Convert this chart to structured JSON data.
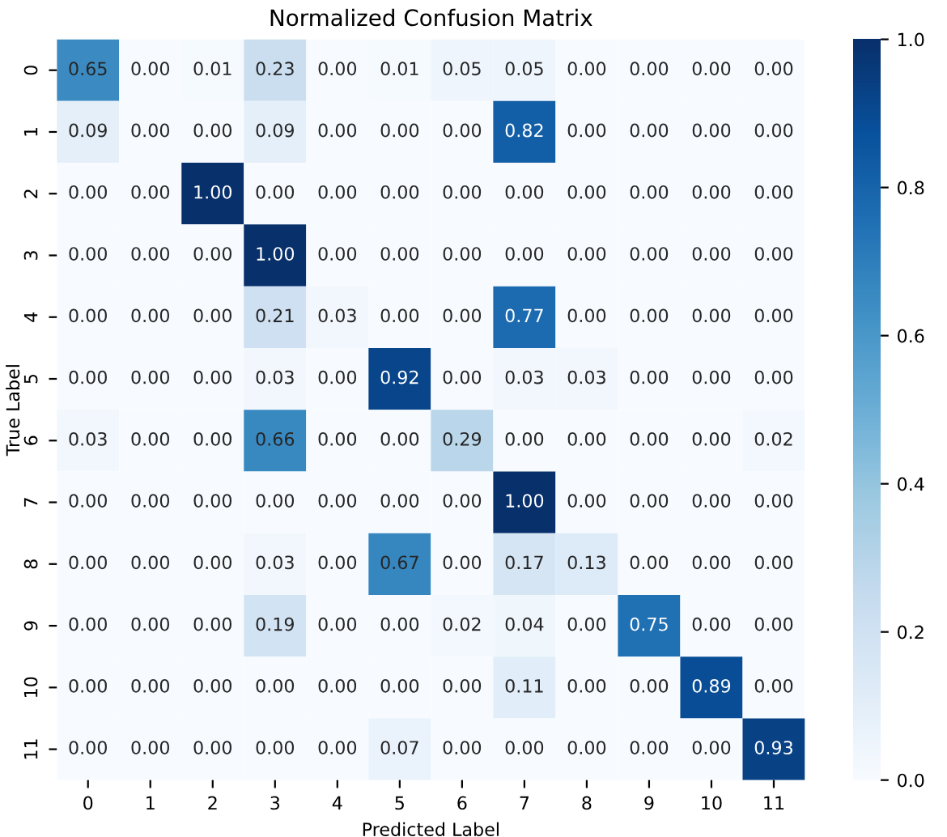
{
  "chart_data": {
    "type": "heatmap",
    "title": "Normalized Confusion Matrix",
    "xlabel": "Predicted Label",
    "ylabel": "True Label",
    "categories": [
      "0",
      "1",
      "2",
      "3",
      "4",
      "5",
      "6",
      "7",
      "8",
      "9",
      "10",
      "11"
    ],
    "y_categories": [
      "0",
      "1",
      "2",
      "3",
      "4",
      "5",
      "6",
      "7",
      "8",
      "9",
      "10",
      "11"
    ],
    "cells": [
      [
        0.65,
        0.0,
        0.01,
        0.23,
        0.0,
        0.01,
        0.05,
        0.05,
        0.0,
        0.0,
        0.0,
        0.0
      ],
      [
        0.09,
        0.0,
        0.0,
        0.09,
        0.0,
        0.0,
        0.0,
        0.82,
        0.0,
        0.0,
        0.0,
        0.0
      ],
      [
        0.0,
        0.0,
        1.0,
        0.0,
        0.0,
        0.0,
        0.0,
        0.0,
        0.0,
        0.0,
        0.0,
        0.0
      ],
      [
        0.0,
        0.0,
        0.0,
        1.0,
        0.0,
        0.0,
        0.0,
        0.0,
        0.0,
        0.0,
        0.0,
        0.0
      ],
      [
        0.0,
        0.0,
        0.0,
        0.21,
        0.03,
        0.0,
        0.0,
        0.77,
        0.0,
        0.0,
        0.0,
        0.0
      ],
      [
        0.0,
        0.0,
        0.0,
        0.03,
        0.0,
        0.92,
        0.0,
        0.03,
        0.03,
        0.0,
        0.0,
        0.0
      ],
      [
        0.03,
        0.0,
        0.0,
        0.66,
        0.0,
        0.0,
        0.29,
        0.0,
        0.0,
        0.0,
        0.0,
        0.02
      ],
      [
        0.0,
        0.0,
        0.0,
        0.0,
        0.0,
        0.0,
        0.0,
        1.0,
        0.0,
        0.0,
        0.0,
        0.0
      ],
      [
        0.0,
        0.0,
        0.0,
        0.03,
        0.0,
        0.67,
        0.0,
        0.17,
        0.13,
        0.0,
        0.0,
        0.0
      ],
      [
        0.0,
        0.0,
        0.0,
        0.19,
        0.0,
        0.0,
        0.02,
        0.04,
        0.0,
        0.75,
        0.0,
        0.0
      ],
      [
        0.0,
        0.0,
        0.0,
        0.0,
        0.0,
        0.0,
        0.0,
        0.11,
        0.0,
        0.0,
        0.89,
        0.0
      ],
      [
        0.0,
        0.0,
        0.0,
        0.0,
        0.0,
        0.07,
        0.0,
        0.0,
        0.0,
        0.0,
        0.0,
        0.93
      ]
    ],
    "cell_labels": [
      [
        "0.65",
        "0.00",
        "0.01",
        "0.23",
        "0.00",
        "0.01",
        "0.05",
        "0.05",
        "0.00",
        "0.00",
        "0.00",
        "0.00"
      ],
      [
        "0.09",
        "0.00",
        "0.00",
        "0.09",
        "0.00",
        "0.00",
        "0.00",
        "0.82",
        "0.00",
        "0.00",
        "0.00",
        "0.00"
      ],
      [
        "0.00",
        "0.00",
        "1.00",
        "0.00",
        "0.00",
        "0.00",
        "0.00",
        "0.00",
        "0.00",
        "0.00",
        "0.00",
        "0.00"
      ],
      [
        "0.00",
        "0.00",
        "0.00",
        "1.00",
        "0.00",
        "0.00",
        "0.00",
        "0.00",
        "0.00",
        "0.00",
        "0.00",
        "0.00"
      ],
      [
        "0.00",
        "0.00",
        "0.00",
        "0.21",
        "0.03",
        "0.00",
        "0.00",
        "0.77",
        "0.00",
        "0.00",
        "0.00",
        "0.00"
      ],
      [
        "0.00",
        "0.00",
        "0.00",
        "0.03",
        "0.00",
        "0.92",
        "0.00",
        "0.03",
        "0.03",
        "0.00",
        "0.00",
        "0.00"
      ],
      [
        "0.03",
        "0.00",
        "0.00",
        "0.66",
        "0.00",
        "0.00",
        "0.29",
        "0.00",
        "0.00",
        "0.00",
        "0.00",
        "0.02"
      ],
      [
        "0.00",
        "0.00",
        "0.00",
        "0.00",
        "0.00",
        "0.00",
        "0.00",
        "1.00",
        "0.00",
        "0.00",
        "0.00",
        "0.00"
      ],
      [
        "0.00",
        "0.00",
        "0.00",
        "0.03",
        "0.00",
        "0.67",
        "0.00",
        "0.17",
        "0.13",
        "0.00",
        "0.00",
        "0.00"
      ],
      [
        "0.00",
        "0.00",
        "0.00",
        "0.19",
        "0.00",
        "0.00",
        "0.02",
        "0.04",
        "0.00",
        "0.75",
        "0.00",
        "0.00"
      ],
      [
        "0.00",
        "0.00",
        "0.00",
        "0.00",
        "0.00",
        "0.00",
        "0.00",
        "0.11",
        "0.00",
        "0.00",
        "0.89",
        "0.00"
      ],
      [
        "0.00",
        "0.00",
        "0.00",
        "0.00",
        "0.00",
        "0.07",
        "0.00",
        "0.00",
        "0.00",
        "0.00",
        "0.00",
        "0.93"
      ]
    ],
    "clim": [
      0.0,
      1.0
    ],
    "cticks": [
      {
        "value": 0.0,
        "label": "0.0"
      },
      0.2,
      0.4,
      0.6,
      0.8,
      {
        "value": 1.0,
        "label": "1.0"
      }
    ]
  }
}
